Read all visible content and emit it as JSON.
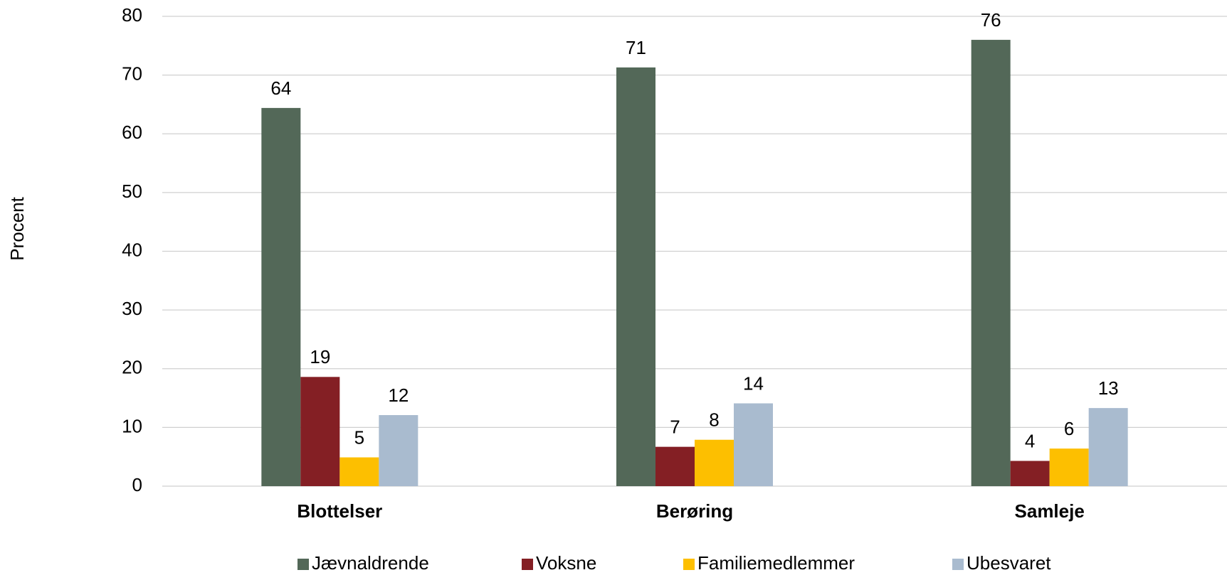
{
  "chart_data": {
    "type": "bar",
    "y_label": "Procent",
    "categories": [
      "Blottelser",
      "Berøring",
      "Samleje"
    ],
    "series": [
      {
        "name": "Jævnaldrende",
        "color": "#536858",
        "values": [
          64.4,
          71.3,
          76
        ],
        "value_labels": [
          "64",
          "71",
          "76"
        ]
      },
      {
        "name": "Voksne",
        "color": "#841f24",
        "values": [
          18.6,
          6.7,
          4.3
        ],
        "value_labels": [
          "19",
          "7",
          "4"
        ]
      },
      {
        "name": "Familiemedlemmer",
        "color": "#fdbf00",
        "values": [
          4.9,
          7.9,
          6.4
        ],
        "value_labels": [
          "5",
          "8",
          "6"
        ]
      },
      {
        "name": "Ubesvaret",
        "color": "#a9bbcf",
        "values": [
          12.1,
          14.1,
          13.3
        ],
        "value_labels": [
          "12",
          "14",
          "13"
        ]
      }
    ],
    "ylim": [
      0,
      80
    ],
    "yticks": [
      0,
      10,
      20,
      30,
      40,
      50,
      60,
      70,
      80
    ],
    "grid": true,
    "legend": "bottom"
  }
}
